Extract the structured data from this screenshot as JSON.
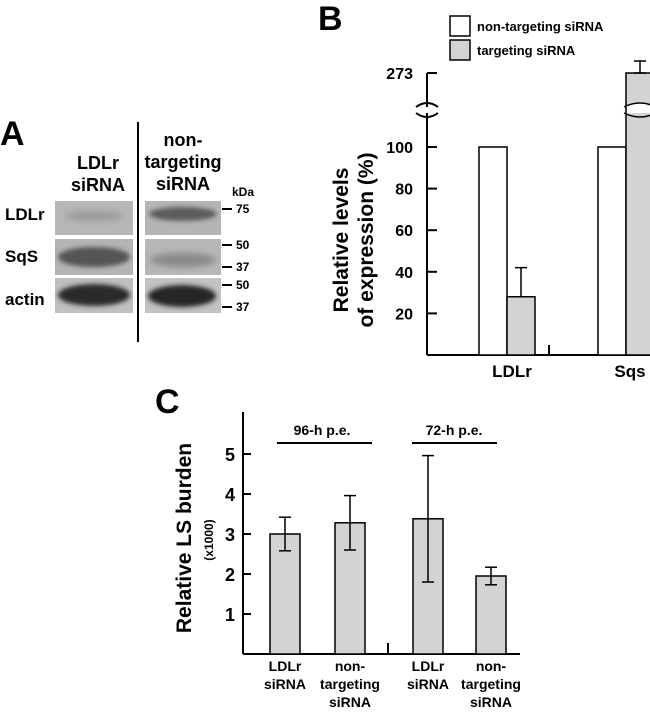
{
  "panels": {
    "a": "A",
    "b": "B",
    "c": "C"
  },
  "blot": {
    "lane1_header": [
      "LDLr",
      "siRNA"
    ],
    "lane2_header": [
      "non-",
      "targeting",
      "siRNA"
    ],
    "kda_label": "kDa",
    "rows": [
      {
        "label": "LDLr",
        "markers": [
          "75"
        ]
      },
      {
        "label": "SqS",
        "markers": [
          "50",
          "37"
        ]
      },
      {
        "label": "actin",
        "markers": [
          "50",
          "37"
        ]
      }
    ]
  },
  "chart_data": [
    {
      "type": "bar",
      "panel": "B",
      "ylabel_lines": [
        "Relative levels",
        "of expression (%)"
      ],
      "categories": [
        "LDLr",
        "Sqs"
      ],
      "axis_break": true,
      "yticks": [
        "20",
        "40",
        "60",
        "80",
        "100"
      ],
      "ytick_upper": "273",
      "ylim_lower": [
        0,
        100
      ],
      "series": [
        {
          "name": "non-targeting siRNA",
          "color": "#ffffff",
          "values": [
            100,
            100
          ],
          "errors": [
            null,
            null
          ]
        },
        {
          "name": "targeting siRNA",
          "color": "#d3d3d3",
          "values": [
            28,
            273
          ],
          "errors": [
            14,
            10
          ]
        }
      ],
      "legend_position": "top-right",
      "grid": false
    },
    {
      "type": "bar",
      "panel": "C",
      "ylabel": "Relative LS burden",
      "ylabel_unit": "(x1000)",
      "ylim": [
        0,
        5.8
      ],
      "yticks": [
        "1",
        "2",
        "3",
        "4",
        "5"
      ],
      "categories": [
        [
          "LDLr",
          "siRNA"
        ],
        [
          "non-",
          "targeting",
          "siRNA"
        ],
        [
          "LDLr",
          "siRNA"
        ],
        [
          "non-",
          "targeting",
          "siRNA"
        ]
      ],
      "values": [
        3.0,
        3.28,
        3.38,
        1.95
      ],
      "errors": [
        0.42,
        0.68,
        1.58,
        0.22
      ],
      "bar_color": "#d3d3d3",
      "groups": [
        {
          "label": "96-h p.e."
        },
        {
          "label": "72-h p.e."
        }
      ],
      "grid": false
    }
  ]
}
